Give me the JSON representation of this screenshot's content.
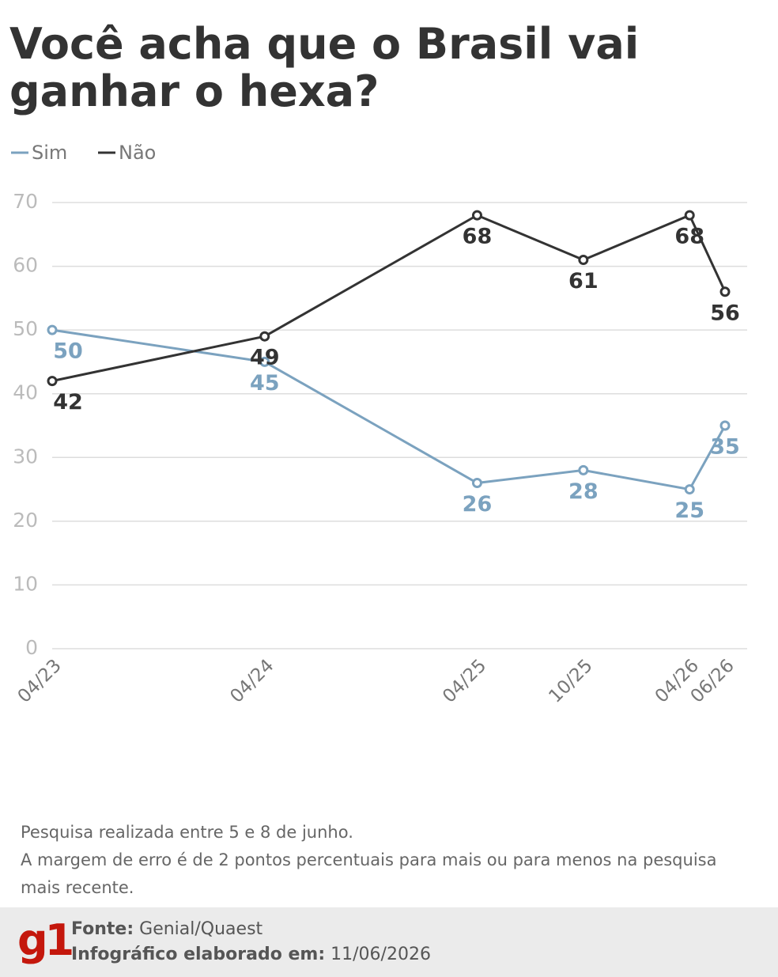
{
  "chart_data": {
    "type": "line",
    "title": "Você acha que o Brasil vai ganhar o hexa?",
    "categories": [
      "04/23",
      "04/24",
      "04/25",
      "10/25",
      "04/26",
      "06/26"
    ],
    "series": [
      {
        "name": "Sim",
        "color": "#7ba2bf",
        "values": [
          50,
          45,
          26,
          28,
          25,
          35
        ]
      },
      {
        "name": "Não",
        "color": "#333333",
        "values": [
          42,
          49,
          68,
          61,
          68,
          56
        ]
      }
    ],
    "ylim": [
      0,
      70
    ],
    "yticks": [
      0,
      10,
      20,
      30,
      40,
      50,
      60,
      70
    ],
    "grid": true,
    "notes": [
      "Pesquisa realizada entre 5 e 8 de junho.",
      "A margem de erro é de 2 pontos percentuais para mais ou para menos na pesquisa mais recente."
    ],
    "source_label": "Fonte:",
    "source": "Genial/Quaest",
    "date_label": "Infográfico elaborado em:",
    "date": "11/06/2026",
    "logo": "g1"
  }
}
